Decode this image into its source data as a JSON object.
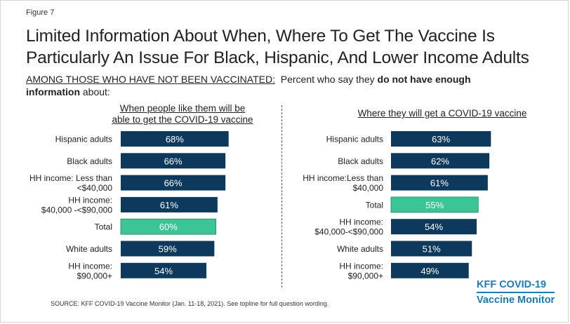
{
  "figure_label": "Figure 7",
  "title_line1": "Limited Information About When, Where To Get The Vaccine Is",
  "title_line2": "Particularly An Issue For Black, Hispanic, And Lower Income Adults",
  "subtitle": {
    "underlined": "AMONG THOSE WHO HAVE NOT BEEN VACCINATED:",
    "plain": "  Percent who say they ",
    "bold1": "do not have enough",
    "bold2": "information",
    "tail": " about:"
  },
  "source": "SOURCE: KFF COVID-19 Vaccine Monitor (Jan. 11-18, 2021). See topline for full question wording.",
  "logo": {
    "line1": "KFF COVID-19",
    "line2": "Vaccine Monitor"
  },
  "colors": {
    "bar": "#0d3a5c",
    "highlight": "#3cc497",
    "label": "#ffffff"
  },
  "chart_data": [
    {
      "type": "bar",
      "orientation": "horizontal",
      "title_lines": [
        "When people like them will be",
        "able to get the COVID-19 vaccine"
      ],
      "categories": [
        [
          "Hispanic adults"
        ],
        [
          "Black adults"
        ],
        [
          "HH income: Less than",
          "<$40,000"
        ],
        [
          "HH income:",
          "$40,000 -<$90,000"
        ],
        [
          "Total"
        ],
        [
          "White adults"
        ],
        [
          "HH income:",
          "$90,000+"
        ]
      ],
      "values": [
        68,
        66,
        66,
        61,
        60,
        59,
        54
      ],
      "labels": [
        "68%",
        "66%",
        "66%",
        "61%",
        "60%",
        "59%",
        "54%"
      ],
      "highlight_index": 4
    },
    {
      "type": "bar",
      "orientation": "horizontal",
      "title_lines": [
        "Where they will get a COVID-19 vaccine"
      ],
      "categories": [
        [
          "Hispanic adults"
        ],
        [
          "Black adults"
        ],
        [
          "HH income:Less than",
          "$40,000"
        ],
        [
          "Total"
        ],
        [
          "HH income:",
          "$40,000-<$90,000"
        ],
        [
          "White adults"
        ],
        [
          "HH income:",
          "$90,000+"
        ]
      ],
      "values": [
        63,
        62,
        61,
        55,
        54,
        51,
        49
      ],
      "labels": [
        "63%",
        "62%",
        "61%",
        "55%",
        "54%",
        "51%",
        "49%"
      ],
      "highlight_index": 3
    }
  ]
}
